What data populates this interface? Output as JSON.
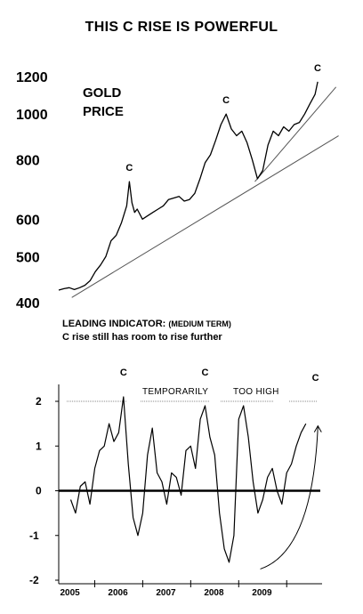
{
  "title": "THIS C RISE IS POWERFUL",
  "top_label_line1": "GOLD",
  "top_label_line2": "PRICE",
  "indicator_heading": "LEADING INDICATOR:",
  "indicator_term": "(MEDIUM TERM)",
  "indicator_note": "C rise still has room to rise further",
  "c_marker": "C",
  "band_text": [
    "TEMPORARILY",
    "TOO HIGH"
  ],
  "chart_data": [
    {
      "type": "line",
      "name": "gold",
      "y_scale": "log",
      "ylim": [
        400,
        1250
      ],
      "yticks": [
        1200,
        1000,
        800,
        600,
        500,
        400
      ],
      "x": [
        2005.0,
        2005.1,
        2005.2,
        2005.3,
        2005.4,
        2005.5,
        2005.6,
        2005.7,
        2005.8,
        2005.9,
        2006.0,
        2006.1,
        2006.2,
        2006.3,
        2006.35,
        2006.4,
        2006.45,
        2006.5,
        2006.6,
        2006.7,
        2006.8,
        2006.9,
        2007.0,
        2007.1,
        2007.2,
        2007.3,
        2007.4,
        2007.5,
        2007.6,
        2007.7,
        2007.8,
        2007.9,
        2008.0,
        2008.1,
        2008.2,
        2008.3,
        2008.4,
        2008.5,
        2008.6,
        2008.7,
        2008.8,
        2008.9,
        2009.0,
        2009.1,
        2009.2,
        2009.3,
        2009.4,
        2009.5,
        2009.6,
        2009.7,
        2009.8,
        2009.9,
        2009.95
      ],
      "values": [
        425,
        428,
        430,
        426,
        430,
        435,
        445,
        465,
        480,
        500,
        540,
        555,
        590,
        640,
        720,
        650,
        620,
        630,
        600,
        610,
        620,
        630,
        640,
        660,
        665,
        670,
        655,
        660,
        680,
        730,
        790,
        820,
        880,
        950,
        1000,
        930,
        900,
        920,
        870,
        800,
        730,
        760,
        860,
        920,
        900,
        940,
        920,
        950,
        960,
        1000,
        1050,
        1100,
        1170
      ],
      "c_peaks_x": [
        2006.35,
        2008.2,
        2009.95
      ],
      "trendlines": [
        {
          "from": [
            2005.25,
            410
          ],
          "to": [
            2010.35,
            900
          ]
        },
        {
          "from": [
            2008.75,
            720
          ],
          "to": [
            2010.3,
            1140
          ]
        }
      ]
    },
    {
      "type": "line",
      "name": "indicator",
      "ylim": [
        -2,
        2.2
      ],
      "yticks": [
        2,
        1,
        0,
        -1,
        -2
      ],
      "xticks": [
        "2005",
        "2006",
        "2007",
        "2008",
        "2009"
      ],
      "reference_lines": [
        0,
        2
      ],
      "x": [
        2005.0,
        2005.1,
        2005.2,
        2005.3,
        2005.4,
        2005.5,
        2005.6,
        2005.7,
        2005.8,
        2005.9,
        2006.0,
        2006.1,
        2006.2,
        2006.3,
        2006.4,
        2006.5,
        2006.6,
        2006.7,
        2006.8,
        2006.9,
        2007.0,
        2007.1,
        2007.2,
        2007.3,
        2007.4,
        2007.5,
        2007.6,
        2007.7,
        2007.8,
        2007.9,
        2008.0,
        2008.1,
        2008.2,
        2008.3,
        2008.4,
        2008.5,
        2008.6,
        2008.7,
        2008.8,
        2008.9,
        2009.0,
        2009.1,
        2009.2,
        2009.3,
        2009.4,
        2009.5,
        2009.6,
        2009.7,
        2009.8,
        2009.9
      ],
      "values": [
        -0.2,
        -0.5,
        0.1,
        0.2,
        -0.3,
        0.5,
        0.9,
        1.0,
        1.5,
        1.1,
        1.3,
        2.1,
        0.6,
        -0.6,
        -1.0,
        -0.5,
        0.8,
        1.4,
        0.4,
        0.2,
        -0.3,
        0.4,
        0.3,
        -0.1,
        0.9,
        1.0,
        0.5,
        1.6,
        1.9,
        1.2,
        0.8,
        -0.5,
        -1.3,
        -1.6,
        -1.0,
        1.6,
        1.9,
        1.2,
        0.2,
        -0.5,
        -0.2,
        0.3,
        0.5,
        0.0,
        -0.3,
        0.4,
        0.6,
        1.0,
        1.3,
        1.5
      ],
      "c_peaks_x": [
        2006.1,
        2007.8,
        2010.1
      ],
      "arrow": {
        "from": [
          2008.95,
          -1.75
        ],
        "to": [
          2010.15,
          1.45
        ]
      }
    }
  ]
}
